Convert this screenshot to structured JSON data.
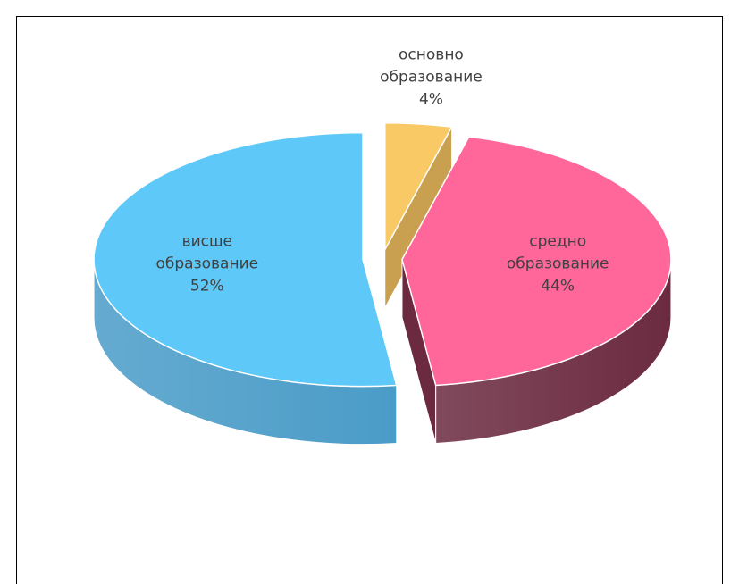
{
  "chart_data": {
    "type": "pie",
    "categories": [
      "основно образование",
      "средно образование",
      "висше образование"
    ],
    "values": [
      4,
      44,
      52
    ],
    "value_labels": [
      "4%",
      "44%",
      "52%"
    ],
    "colors": [
      "#f9c966",
      "#ff6699",
      "#5ec8f8"
    ],
    "side_colors": [
      "#c9a04f",
      "#6b2a40",
      "#4a9cc8"
    ]
  }
}
